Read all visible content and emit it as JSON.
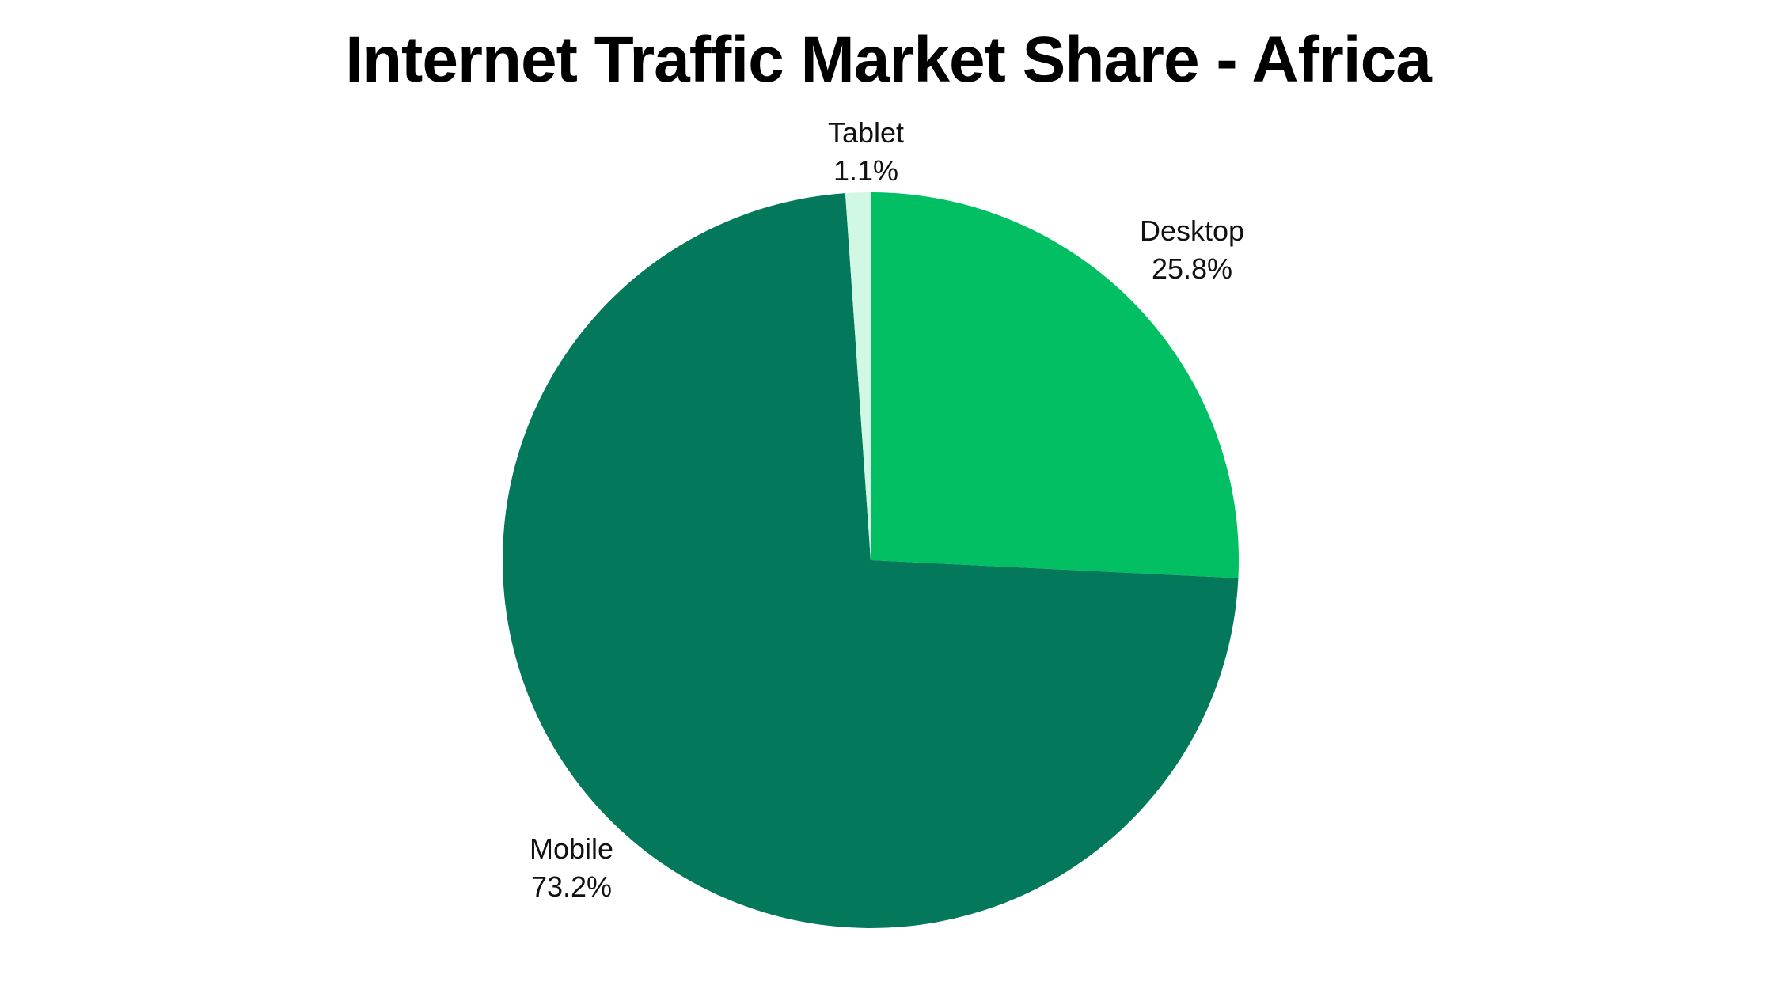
{
  "title": "Internet Traffic Market Share - Africa",
  "colors": {
    "desktop": "#02BF63",
    "mobile": "#03785A",
    "tablet": "#D0F8E4",
    "background": "#FFFFFF",
    "text": "#000000"
  },
  "labels": {
    "desktop": {
      "name": "Desktop",
      "value": "25.8%"
    },
    "mobile": {
      "name": "Mobile",
      "value": "73.2%"
    },
    "tablet": {
      "name": "Tablet",
      "value": "1.1%"
    }
  },
  "chart_data": {
    "type": "pie",
    "title": "Internet Traffic Market Share - Africa",
    "categories": [
      "Desktop",
      "Mobile",
      "Tablet"
    ],
    "values": [
      25.8,
      73.2,
      1.1
    ],
    "unit": "%",
    "start_angle": "12 o'clock",
    "direction": "clockwise",
    "colors": [
      "#02BF63",
      "#03785A",
      "#D0F8E4"
    ],
    "legend": "none (labels placed outside slices)",
    "data_labels": [
      "Desktop 25.8%",
      "Mobile 73.2%",
      "Tablet 1.1%"
    ]
  }
}
